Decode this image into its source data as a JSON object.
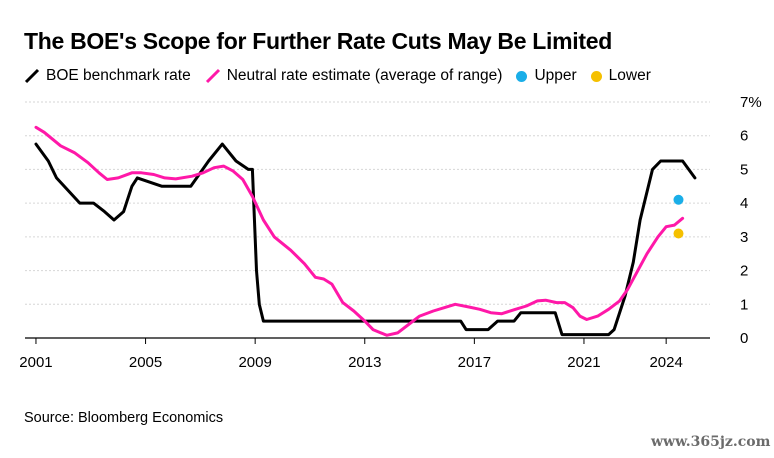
{
  "title": "The BOE's Scope for Further Rate Cuts May Be Limited",
  "source": "Source: Bloomberg Economics",
  "watermark": "www.365jz.com",
  "chart_data": {
    "type": "line",
    "title": "The BOE's Scope for Further Rate Cuts May Be Limited",
    "xlabel": "",
    "ylabel": "",
    "xlim": [
      2000.6,
      2025.6
    ],
    "ylim": [
      0,
      7
    ],
    "y_ticks": [
      0,
      1,
      2,
      3,
      4,
      5,
      6,
      7
    ],
    "y_tick_labels": [
      "0",
      "1",
      "2",
      "3",
      "4",
      "5",
      "6",
      "7%"
    ],
    "x_ticks": [
      2001,
      2005,
      2009,
      2013,
      2017,
      2021,
      2024
    ],
    "x_tick_labels": [
      "2001",
      "2005",
      "2009",
      "2013",
      "2017",
      "2021",
      "2024"
    ],
    "grid": "horizontal",
    "y_axis_side": "right",
    "legend_position": "top",
    "series": [
      {
        "name": "BOE benchmark rate",
        "color": "#000000",
        "kind": "line",
        "x": [
          2001.0,
          2001.45,
          2001.75,
          2002.6,
          2002.85,
          2003.1,
          2003.5,
          2003.85,
          2004.2,
          2004.5,
          2004.7,
          2005.6,
          2006.65,
          2007.3,
          2007.8,
          2008.3,
          2008.75,
          2008.9,
          2009.05,
          2009.15,
          2009.3,
          2016.5,
          2016.7,
          2017.5,
          2017.85,
          2018.45,
          2018.7,
          2019.95,
          2020.2,
          2020.6,
          2021.9,
          2022.1,
          2022.5,
          2022.8,
          2023.05,
          2023.5,
          2023.8,
          2024.6,
          2025.05
        ],
        "values": [
          5.75,
          5.25,
          4.75,
          4.0,
          4.0,
          4.0,
          3.75,
          3.5,
          3.75,
          4.5,
          4.75,
          4.5,
          4.5,
          5.25,
          5.75,
          5.25,
          5.0,
          5.0,
          2.0,
          1.0,
          0.5,
          0.5,
          0.25,
          0.25,
          0.5,
          0.5,
          0.75,
          0.75,
          0.1,
          0.1,
          0.1,
          0.25,
          1.25,
          2.25,
          3.5,
          5.0,
          5.25,
          5.25,
          4.75
        ]
      },
      {
        "name": "Neutral rate estimate (average of range)",
        "color": "#ff18a8",
        "kind": "line",
        "x": [
          2001.0,
          2001.3,
          2001.9,
          2002.4,
          2002.9,
          2003.3,
          2003.6,
          2004.0,
          2004.5,
          2004.85,
          2005.3,
          2005.7,
          2006.1,
          2006.7,
          2007.1,
          2007.5,
          2007.85,
          2008.2,
          2008.55,
          2008.9,
          2009.3,
          2009.7,
          2010.3,
          2010.8,
          2011.2,
          2011.5,
          2011.8,
          2012.2,
          2012.6,
          2013.0,
          2013.3,
          2013.8,
          2014.2,
          2014.6,
          2015.0,
          2015.5,
          2015.9,
          2016.3,
          2016.8,
          2017.2,
          2017.6,
          2018.0,
          2018.5,
          2018.9,
          2019.3,
          2019.6,
          2020.0,
          2020.3,
          2020.6,
          2020.85,
          2021.1,
          2021.5,
          2021.9,
          2022.3,
          2022.6,
          2022.9,
          2023.3,
          2023.7,
          2024.0,
          2024.3,
          2024.6
        ],
        "values": [
          6.25,
          6.1,
          5.7,
          5.5,
          5.2,
          4.9,
          4.7,
          4.75,
          4.9,
          4.9,
          4.85,
          4.75,
          4.72,
          4.8,
          4.9,
          5.05,
          5.1,
          4.95,
          4.7,
          4.2,
          3.5,
          3.0,
          2.6,
          2.2,
          1.8,
          1.75,
          1.6,
          1.05,
          0.8,
          0.5,
          0.25,
          0.08,
          0.15,
          0.4,
          0.65,
          0.8,
          0.9,
          1.0,
          0.92,
          0.85,
          0.75,
          0.72,
          0.85,
          0.95,
          1.1,
          1.12,
          1.05,
          1.05,
          0.9,
          0.65,
          0.55,
          0.65,
          0.85,
          1.1,
          1.45,
          1.9,
          2.5,
          3.0,
          3.3,
          3.35,
          3.55
        ]
      },
      {
        "name": "Upper",
        "color": "#1aaee8",
        "kind": "point",
        "x": [
          2024.45
        ],
        "values": [
          4.1
        ]
      },
      {
        "name": "Lower",
        "color": "#f5c000",
        "kind": "point",
        "x": [
          2024.45
        ],
        "values": [
          3.1
        ]
      }
    ]
  }
}
